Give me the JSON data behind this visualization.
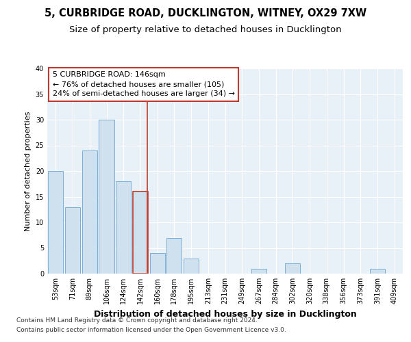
{
  "title1": "5, CURBRIDGE ROAD, DUCKLINGTON, WITNEY, OX29 7XW",
  "title2": "Size of property relative to detached houses in Ducklington",
  "xlabel": "Distribution of detached houses by size in Ducklington",
  "ylabel": "Number of detached properties",
  "bins": [
    "53sqm",
    "71sqm",
    "89sqm",
    "106sqm",
    "124sqm",
    "142sqm",
    "160sqm",
    "178sqm",
    "195sqm",
    "213sqm",
    "231sqm",
    "249sqm",
    "267sqm",
    "284sqm",
    "302sqm",
    "320sqm",
    "338sqm",
    "356sqm",
    "373sqm",
    "391sqm",
    "409sqm"
  ],
  "values": [
    20,
    13,
    24,
    30,
    18,
    16,
    4,
    7,
    3,
    0,
    0,
    0,
    1,
    0,
    2,
    0,
    0,
    0,
    0,
    1,
    0
  ],
  "bar_color": "#cfe0ef",
  "bar_edge_color": "#7bafd4",
  "highlight_bar_index": 5,
  "highlight_bar_edge_color": "#c0392b",
  "vline_x": 5.42,
  "vline_color": "#c0392b",
  "annotation_line1": "5 CURBRIDGE ROAD: 146sqm",
  "annotation_line2": "← 76% of detached houses are smaller (105)",
  "annotation_line3": "24% of semi-detached houses are larger (34) →",
  "annotation_box_color": "white",
  "annotation_box_edge_color": "#c0392b",
  "ylim": [
    0,
    40
  ],
  "yticks": [
    0,
    5,
    10,
    15,
    20,
    25,
    30,
    35,
    40
  ],
  "footer1": "Contains HM Land Registry data © Crown copyright and database right 2024.",
  "footer2": "Contains public sector information licensed under the Open Government Licence v3.0.",
  "bg_color": "#e8f0f8",
  "fig_bg_color": "#ffffff",
  "title1_fontsize": 10.5,
  "title2_fontsize": 9.5,
  "xlabel_fontsize": 9,
  "ylabel_fontsize": 8,
  "tick_fontsize": 7,
  "annotation_fontsize": 8,
  "footer_fontsize": 6.5
}
